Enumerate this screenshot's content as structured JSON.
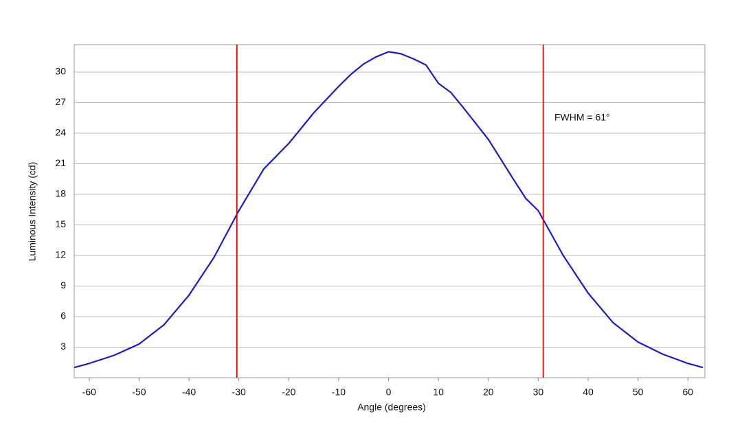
{
  "chart_data": {
    "type": "line",
    "x_label": "Angle (degrees)",
    "y_label": "Luminous Intensity (cd)",
    "annotation": "FWHM = 61°",
    "x": [
      -63,
      -60,
      -55,
      -50,
      -45,
      -40,
      -35,
      -30,
      -25,
      -20,
      -15,
      -10,
      -7.5,
      -5,
      -2.5,
      0,
      2.5,
      5,
      7.5,
      10,
      12.5,
      15,
      20,
      25,
      27.5,
      30,
      32.5,
      35,
      40,
      45,
      50,
      55,
      60,
      63
    ],
    "series": [
      {
        "color": "#1a1acc",
        "values": [
          1.0,
          1.4,
          2.2,
          3.3,
          5.2,
          8.1,
          11.8,
          16.4,
          20.5,
          23.0,
          26.0,
          28.6,
          29.8,
          30.8,
          31.5,
          32.0,
          31.8,
          31.3,
          30.7,
          28.9,
          28.0,
          26.5,
          23.4,
          19.5,
          17.6,
          16.4,
          14.2,
          12.0,
          8.3,
          5.4,
          3.5,
          2.3,
          1.4,
          1.0
        ]
      }
    ],
    "vlines": [
      -30.4,
      31.0
    ],
    "vline_color": "#e00000",
    "xlim": [
      -63,
      63.4
    ],
    "ylim": [
      0,
      32.7
    ],
    "xticks": [
      -60,
      -50,
      -40,
      -30,
      -20,
      -10,
      0,
      10,
      20,
      30,
      40,
      50,
      60
    ],
    "yticks": [
      3,
      6,
      9,
      12,
      15,
      18,
      21,
      24,
      27,
      30
    ],
    "grid": true
  }
}
